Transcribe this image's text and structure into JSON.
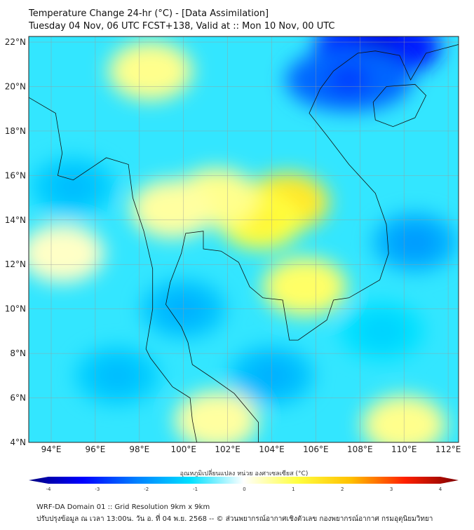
{
  "header": {
    "title": "Temperature Change 24-hr (°C) - [Data Assimilation]",
    "subtitle": "Tuesday 04 Nov, 06 UTC FCST+138, Valid at :: Mon 10 Nov, 00 UTC"
  },
  "map": {
    "lon_range": [
      93,
      112.5
    ],
    "lat_range": [
      4,
      22.25
    ],
    "lat_labels": [
      "4°N",
      "6°N",
      "8°N",
      "10°N",
      "12°N",
      "14°N",
      "16°N",
      "18°N",
      "20°N",
      "22°N"
    ],
    "lon_labels": [
      "94°E",
      "96°E",
      "98°E",
      "100°E",
      "102°E",
      "104°E",
      "106°E",
      "108°E",
      "110°E",
      "112°E"
    ],
    "background_value": -0.8,
    "anomalies": [
      {
        "lon": 104.7,
        "lat": 14.8,
        "value": 1.3
      },
      {
        "lon": 103.5,
        "lat": 14.0,
        "value": 1.0
      },
      {
        "lon": 101.5,
        "lat": 15.0,
        "value": 0.6
      },
      {
        "lon": 105.5,
        "lat": 11.0,
        "value": 0.8
      },
      {
        "lon": 99.5,
        "lat": 14.5,
        "value": 0.5
      },
      {
        "lon": 98.5,
        "lat": 20.7,
        "value": 0.6
      },
      {
        "lon": 108.8,
        "lat": 21.8,
        "value": -2.8
      },
      {
        "lon": 107.5,
        "lat": 20.3,
        "value": -2.2
      },
      {
        "lon": 110.5,
        "lat": 13,
        "value": -1.5
      },
      {
        "lon": 101.5,
        "lat": 5,
        "value": 0.5
      },
      {
        "lon": 110,
        "lat": 4.8,
        "value": 0.6
      },
      {
        "lon": 94.5,
        "lat": 12.5,
        "value": 0.3
      },
      {
        "lon": 97,
        "lat": 7,
        "value": -1.2
      },
      {
        "lon": 104,
        "lat": 7,
        "value": -1.3
      },
      {
        "lon": 95,
        "lat": 15.5,
        "value": -1.2
      },
      {
        "lon": 109,
        "lat": 9,
        "value": -1.0
      },
      {
        "lon": 100,
        "lat": 10,
        "value": -1.3
      }
    ]
  },
  "colorbar": {
    "label": "อุณหภูมิเปลี่ยนแปลง หน่วย องศาเซลเซียส (°C)",
    "ticks": [
      "-4",
      "-3",
      "-2",
      "-1",
      "0",
      "1",
      "2",
      "3",
      "4"
    ],
    "min": -4,
    "max": 4,
    "colors": [
      "#00007f",
      "#0000ff",
      "#0080ff",
      "#00e0ff",
      "#ffffff",
      "#ffff40",
      "#ffc000",
      "#ff2000",
      "#7f0000"
    ]
  },
  "footer": {
    "line1": "WRF-DA Domain 01 :: Grid Resolution 9km x 9km",
    "line2": "ปรับปรุงข้อมูล ณ เวลา 13:00น. วัน อ. ที่ 04 พ.ย. 2568 -- © ส่วนพยากรณ์อากาศเชิงตัวเลข กองพยากรณ์อากาศ กรมอุตุนิยมวิทยา"
  }
}
